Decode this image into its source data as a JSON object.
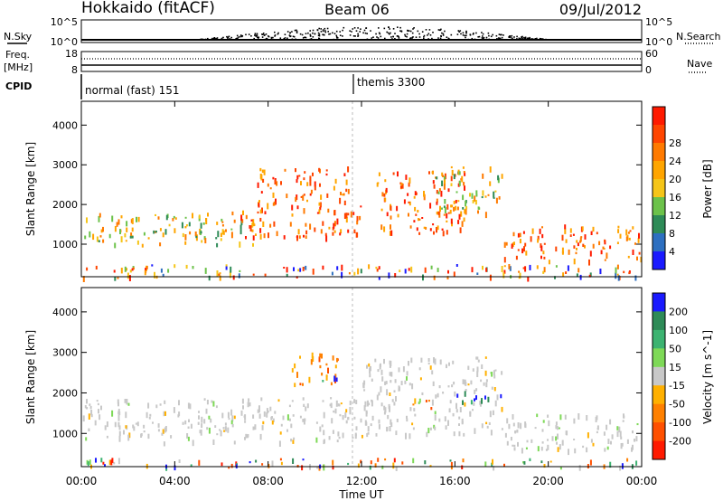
{
  "header": {
    "station": "Hokkaido (fitACF)",
    "beam": "Beam 06",
    "date": "09/Jul/2012"
  },
  "top_panels": {
    "nsky": {
      "label": "N.Sky",
      "ticks_left": [
        "10^5",
        "10^0"
      ],
      "right_label": "N.Search",
      "ticks_right": [
        "10^5",
        "10^0"
      ]
    },
    "freq": {
      "label_line1": "Freq.",
      "label_line2": "[MHz]",
      "ticks_left": [
        "18",
        "8"
      ],
      "right_label": "Nave",
      "ticks_right": [
        "60",
        "0"
      ]
    },
    "cpid": {
      "label": "CPID",
      "segments": [
        {
          "name": "normal (fast) 151",
          "start_hour": 0,
          "end_hour": 12
        },
        {
          "name": "themis 3300",
          "start_hour": 12,
          "end_hour": 24
        }
      ]
    }
  },
  "chart_data": [
    {
      "type": "heatmap",
      "panel": "power",
      "xlabel": "",
      "ylabel": "Slant Range [km]",
      "x_range_hours": [
        0,
        24
      ],
      "ylim": [
        180,
        4600
      ],
      "y_ticks": [
        1000,
        2000,
        3000,
        4000
      ],
      "colorbar": {
        "label": "Power [dB]",
        "ticks": [
          4,
          8,
          12,
          16,
          20,
          24,
          28
        ],
        "colors": [
          "#1a1aff",
          "#2d6fc0",
          "#2e8b57",
          "#6cc24a",
          "#f5c518",
          "#ffa500",
          "#ff7a00",
          "#ff4500",
          "#ff1a00"
        ]
      },
      "features": [
        {
          "start_hour": 0.0,
          "end_hour": 7.5,
          "range_km": [
            1000,
            1800
          ],
          "level": "medium"
        },
        {
          "start_hour": 6.0,
          "end_hour": 12.0,
          "range_km": [
            1200,
            2000
          ],
          "level": "high"
        },
        {
          "start_hour": 7.5,
          "end_hour": 11.5,
          "range_km": [
            2000,
            3000
          ],
          "level": "high"
        },
        {
          "start_hour": 12.5,
          "end_hour": 16.5,
          "range_km": [
            1300,
            2900
          ],
          "level": "high"
        },
        {
          "start_hour": 15.0,
          "end_hour": 18.0,
          "range_km": [
            1800,
            3000
          ],
          "level": "medium"
        },
        {
          "start_hour": 18.0,
          "end_hour": 24.0,
          "range_km": [
            600,
            1500
          ],
          "level": "high"
        },
        {
          "start_hour": 0.0,
          "end_hour": 24.0,
          "range_km": [
            180,
            500
          ],
          "level": "mixed"
        }
      ]
    },
    {
      "type": "heatmap",
      "panel": "velocity",
      "xlabel": "Time UT",
      "ylabel": "Slant Range [km]",
      "x_range_hours": [
        0,
        24
      ],
      "x_ticks": [
        "00:00",
        "04:00",
        "08:00",
        "12:00",
        "16:00",
        "20:00",
        "00:00"
      ],
      "ylim": [
        180,
        4600
      ],
      "y_ticks": [
        1000,
        2000,
        3000,
        4000
      ],
      "colorbar": {
        "label": "Velocity [m s^-1]",
        "ticks": [
          200,
          100,
          50,
          15,
          -15,
          -50,
          -100,
          -200
        ],
        "colors": [
          "#1a1aff",
          "#2e8b57",
          "#3cb371",
          "#7ed957",
          "#c8c8c8",
          "#ffb000",
          "#ff8000",
          "#ff5000",
          "#ff1a00"
        ]
      },
      "features": [
        {
          "start_hour": 0.0,
          "end_hour": 12.0,
          "range_km": [
            800,
            1900
          ],
          "level": "ground scatter"
        },
        {
          "start_hour": 9.0,
          "end_hour": 11.0,
          "range_km": [
            2200,
            3000
          ],
          "level": "negative"
        },
        {
          "start_hour": 10.0,
          "end_hour": 11.0,
          "range_km": [
            2300,
            2500
          ],
          "level": "positive"
        },
        {
          "start_hour": 12.0,
          "end_hour": 18.0,
          "range_km": [
            1000,
            2900
          ],
          "level": "ground scatter"
        },
        {
          "start_hour": 14.0,
          "end_hour": 15.0,
          "range_km": [
            1600,
            1900
          ],
          "level": "negative"
        },
        {
          "start_hour": 16.0,
          "end_hour": 18.0,
          "range_km": [
            1800,
            2100
          ],
          "level": "positive"
        },
        {
          "start_hour": 18.0,
          "end_hour": 24.0,
          "range_km": [
            600,
            1500
          ],
          "level": "ground scatter"
        },
        {
          "start_hour": 0.0,
          "end_hour": 24.0,
          "range_km": [
            180,
            400
          ],
          "level": "mixed"
        }
      ]
    }
  ]
}
